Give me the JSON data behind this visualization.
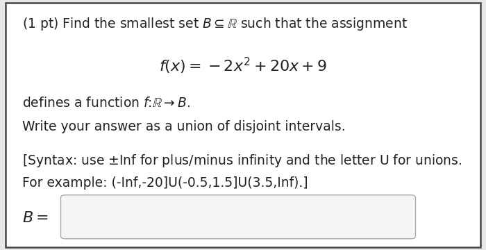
{
  "bg_color": "#e8e8e8",
  "box_color": "#ffffff",
  "border_color": "#444444",
  "line1": "(1 pt) Find the smallest set $B \\subseteq \\mathbb{R}$ such that the assignment",
  "formula": "$f(x) = -2x^2 + 20x + 9$",
  "line2": "defines a function $f\\colon \\mathbb{R} \\rightarrow B.$",
  "line3": "Write your answer as a union of disjoint intervals.",
  "line4": "[Syntax: use $\\pm$Inf for plus/minus infinity and the letter U for unions.",
  "line5": "For example: (-Inf,-20]U(-0.5,1.5]U(3.5,Inf).]",
  "label_B": "$B =$",
  "input_box_color": "#f5f5f5",
  "input_box_border": "#aaaaaa",
  "font_size_main": 13.5,
  "font_size_formula": 16,
  "text_color": "#222222"
}
